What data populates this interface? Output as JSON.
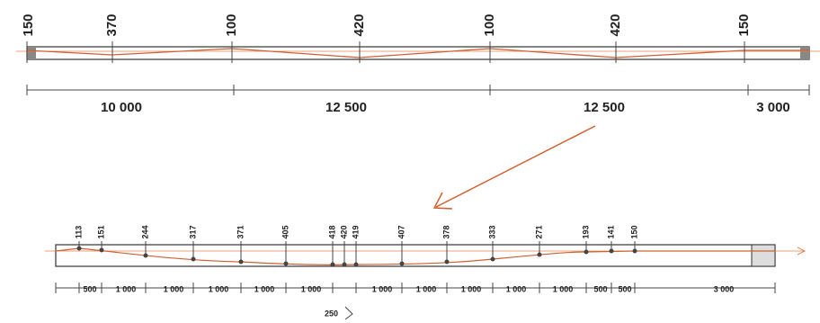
{
  "top": {
    "heights": [
      "150",
      "370",
      "100",
      "420",
      "100",
      "420",
      "150"
    ],
    "spans": [
      "10 000",
      "12 500",
      "12 500",
      "3 000"
    ]
  },
  "bottom": {
    "heights": [
      "113",
      "151",
      "244",
      "317",
      "371",
      "405",
      "418",
      "420",
      "419",
      "407",
      "378",
      "333",
      "271",
      "193",
      "141",
      "150"
    ],
    "dims": [
      "500",
      "1 000",
      "1 000",
      "1 000",
      "1 000",
      "1 000",
      "1 000",
      "1 000",
      "1 000",
      "1 000",
      "1 000",
      "500",
      "500",
      "3 000"
    ],
    "note": "250"
  }
}
